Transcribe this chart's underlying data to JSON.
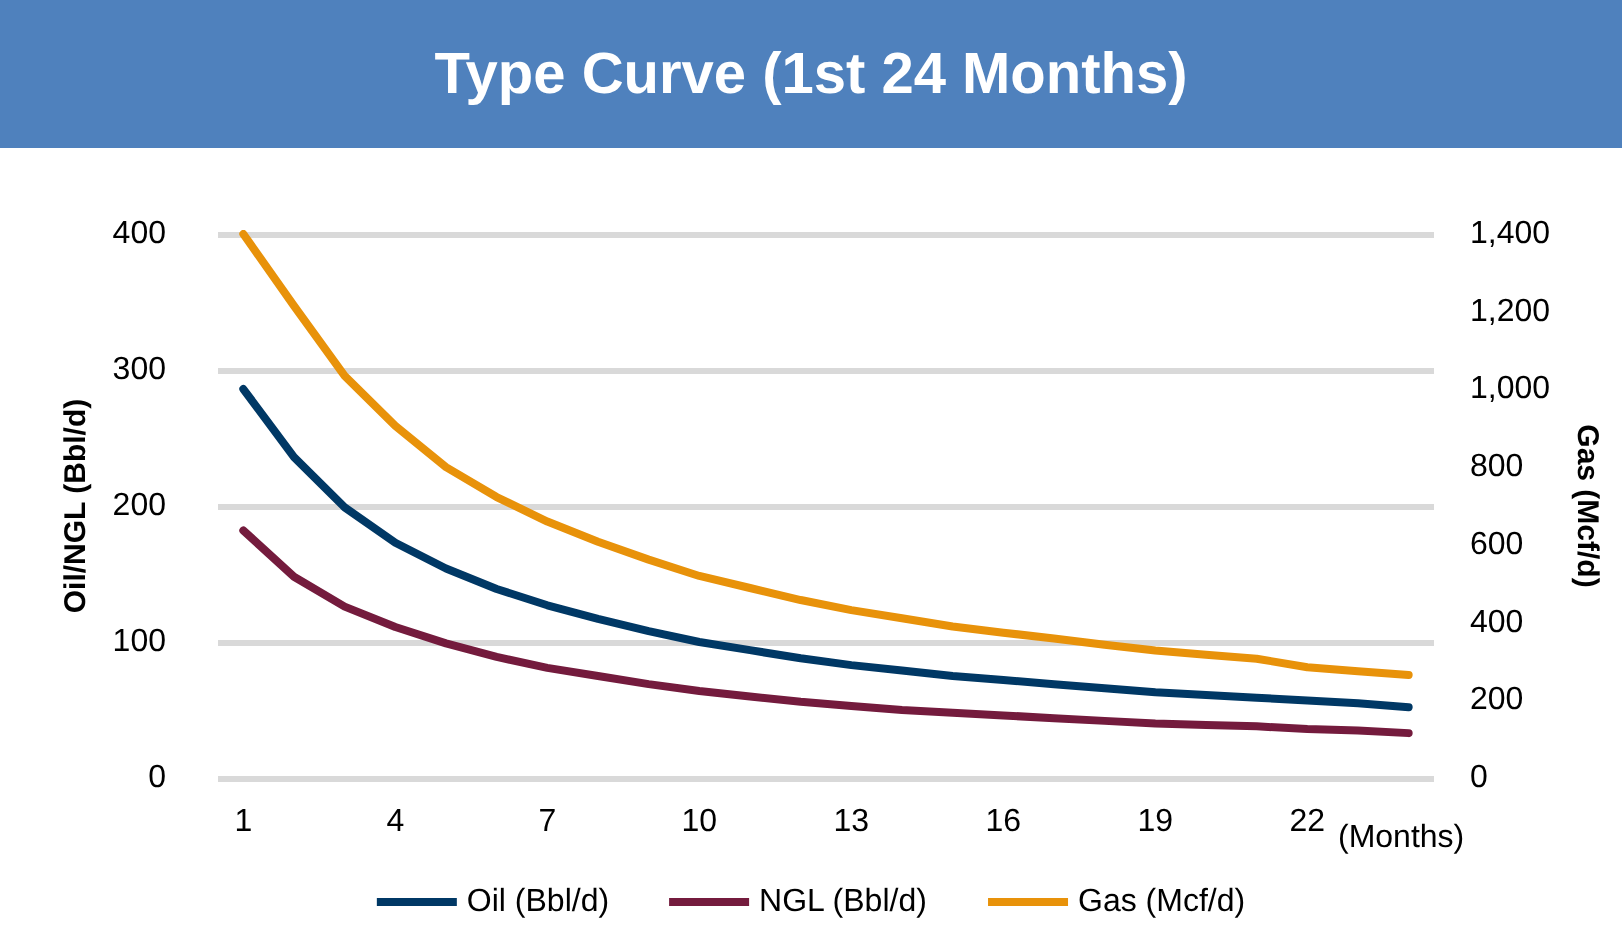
{
  "chart_data": {
    "type": "line",
    "title": "Type Curve (1st 24 Months)",
    "xlabel": "(Months)",
    "ylabel": "Oil/NGL (Bbl/d)",
    "y2label": "Gas (Mcf/d)",
    "categories": [
      "1",
      null,
      null,
      "4",
      null,
      null,
      "7",
      null,
      null,
      "10",
      null,
      null,
      "13",
      null,
      null,
      "16",
      null,
      null,
      "19",
      null,
      null,
      "22",
      null,
      null
    ],
    "series": [
      {
        "name": "Oil (Bbl/d)",
        "color": "#003865",
        "values": [
          286,
          236,
          199,
          173,
          154,
          139,
          127,
          117,
          108,
          100,
          94,
          88,
          83,
          79,
          75,
          72,
          69,
          66,
          63,
          61,
          59,
          57,
          55,
          52
        ]
      },
      {
        "name": "NGL (Bbl/d)",
        "color": "#741b3d",
        "values": [
          182,
          148,
          126,
          111,
          99,
          89,
          81,
          75,
          69,
          64,
          60,
          56,
          53,
          50,
          48,
          46,
          44,
          42,
          40,
          39,
          38,
          36,
          35,
          33
        ]
      },
      {
        "name": "Gas (Mcf/d)",
        "color": "#e8920a",
        "axis": "y2",
        "values": [
          1400,
          1215,
          1035,
          906,
          800,
          723,
          660,
          608,
          562,
          520,
          489,
          458,
          432,
          411,
          390,
          374,
          359,
          343,
          328,
          317,
          307,
          285,
          275,
          265
        ]
      }
    ],
    "ylim": [
      0,
      400
    ],
    "yticks": [
      0,
      100,
      200,
      300,
      400
    ],
    "y2lim": [
      0,
      1400
    ],
    "y2ticks": [
      0,
      {
        "value": 200,
        "label": "200"
      },
      {
        "value": 400,
        "label": "400"
      },
      {
        "value": 600,
        "label": "600"
      },
      {
        "value": 800,
        "label": "800"
      },
      {
        "value": 1000,
        "label": "1,000"
      },
      {
        "value": 1200,
        "label": "1,200"
      },
      {
        "value": 1400,
        "label": "1,400"
      }
    ],
    "grid": "y",
    "legend": "bottom",
    "marker": "none",
    "line_style": "solid"
  }
}
